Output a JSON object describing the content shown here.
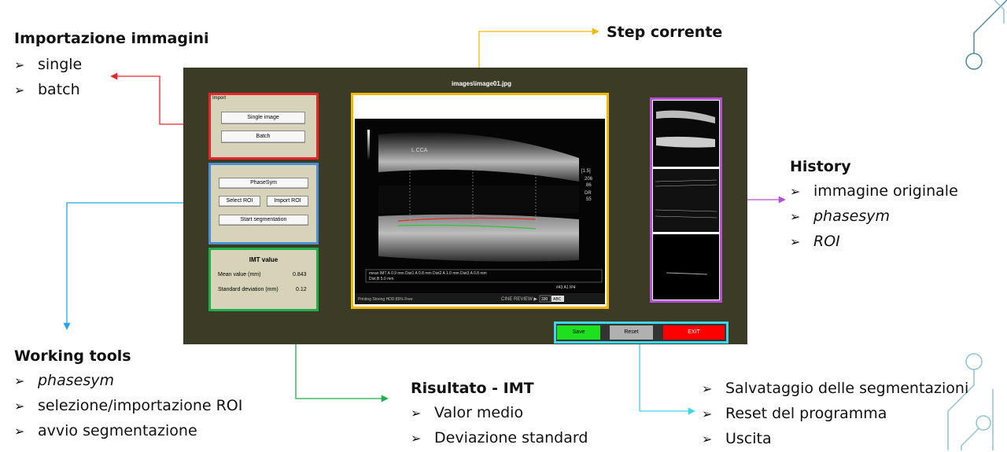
{
  "slide": {
    "import": {
      "title": "Importazione immagini",
      "items": [
        "single",
        "batch"
      ]
    },
    "step": {
      "title": "Step corrente"
    },
    "history": {
      "title": "History",
      "items": [
        "immagine originale",
        "phasesym",
        "ROI"
      ]
    },
    "tools": {
      "title": "Working tools",
      "items": [
        "phasesym",
        "selezione/importazione ROI",
        "avvio segmentazione"
      ]
    },
    "result": {
      "title": "Risultato - IMT",
      "items": [
        "Valor medio",
        "Deviazione standard"
      ]
    },
    "actions": {
      "items": [
        "Salvataggio delle segmentazioni",
        "Reset del programma",
        "Uscita"
      ]
    },
    "bullet_glyph": "➢"
  },
  "app": {
    "image_title": "images\\image01.jpg",
    "import_panel": {
      "label": "Import",
      "single_button": "Single image",
      "batch_button": "Batch"
    },
    "tools_panel": {
      "phasesym_button": "PhaseSym",
      "select_roi_button": "Select ROI",
      "import_roi_button": "Import ROI",
      "start_button": "Start segmentation"
    },
    "imt_panel": {
      "title": "IMT value",
      "mean_label": "Mean value (mm)",
      "mean_value": "0.843",
      "sd_label": "Standard deviation (mm)",
      "sd_value": "0.12"
    },
    "buttons": {
      "save": "Save",
      "reset": "Reset",
      "exit": "EXIT"
    },
    "us": {
      "bottom_left": "Printing    Storing    HDD:85% Free",
      "cine": "CINE REVIEW ▶",
      "cine_frames": "330",
      "abc": "ABC",
      "meas_row1": "mean IMT A   0.9  mm    Dist1 A    0.8  mm    Dist2 A    1.0  mm    Dist3 A    0.8  mm",
      "meas_row2": "Dist B    5.0  mm",
      "lbl_lcca": "L CCA",
      "side_vals": [
        "[1.5]",
        "206",
        "86",
        "DR",
        "55"
      ],
      "probe": "#43\nA1  IP4"
    }
  },
  "colors": {
    "import_frame": "#e8262a",
    "tools_frame": "#4a90d9",
    "imt_frame": "#1fae4a",
    "image_frame": "#f5b800",
    "history_frame": "#b44fd6",
    "buttons_frame": "#3dd5e8",
    "step_arrow": "#f5b800",
    "history_arrow": "#b44fd6",
    "tools_arrow": "#25a6e8",
    "result_arrow": "#1fae4a",
    "actions_arrow": "#3dd5e8",
    "import_arrow": "#e8262a",
    "save_bg": "#1fe01f",
    "reset_bg": "#b0b0b0",
    "exit_bg": "#ff0000",
    "app_bg": "#3c3b26"
  }
}
